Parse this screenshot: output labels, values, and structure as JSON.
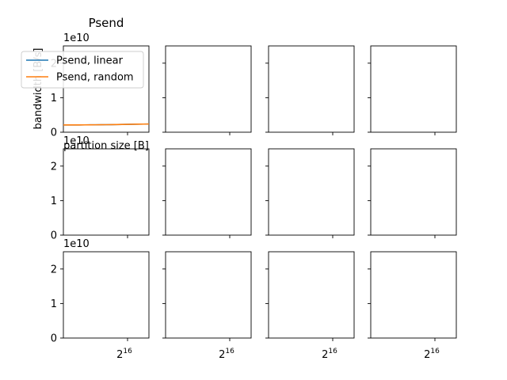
{
  "chart_data": {
    "type": "line",
    "layout": "3x4 grid of subplots, shared y axes per row, shared x axes per column",
    "panels": [
      {
        "row": 0,
        "col": 0,
        "title": "Psend",
        "xlabel": "partition size [B]",
        "ylabel": "bandwidth [B/s]",
        "x_scale": "log2",
        "ylim": [
          0,
          25000000000
        ],
        "y_offset_text": "1e10",
        "y_ticks": [
          0,
          1,
          2
        ],
        "legend": "upper-left",
        "series": [
          {
            "name": "Psend, linear",
            "color": "#1f77b4",
            "x": [
              16,
              32,
              64,
              128,
              256,
              512,
              1024,
              2048,
              4096,
              8192,
              16384,
              32768,
              65536,
              131072,
              262144,
              524288,
              1048576
            ],
            "y": [
              2100000000,
              2100000000,
              2100000000,
              2110000000,
              2120000000,
              2130000000,
              2150000000,
              2160000000,
              2180000000,
              2200000000,
              2220000000,
              2250000000,
              2280000000,
              2300000000,
              2330000000,
              2350000000,
              2380000000
            ]
          },
          {
            "name": "Psend, random",
            "color": "#ff7f0e",
            "x": [
              16,
              32,
              64,
              128,
              256,
              512,
              1024,
              2048,
              4096,
              8192,
              16384,
              32768,
              65536,
              131072,
              262144,
              524288,
              1048576
            ],
            "y": [
              2100000000,
              2100000000,
              2100000000,
              2110000000,
              2120000000,
              2130000000,
              2150000000,
              2160000000,
              2180000000,
              2200000000,
              2220000000,
              2250000000,
              2280000000,
              2300000000,
              2330000000,
              2350000000,
              2380000000
            ]
          }
        ]
      }
    ],
    "row_y_offset_text": [
      "1e10",
      "1e10",
      "1e10"
    ],
    "row_y_tick_labels": [
      "0",
      "1",
      "2"
    ],
    "bottom_x_tick_labels": [
      "2",
      "2",
      "2",
      "2"
    ],
    "x_tick_exponent": "16"
  }
}
